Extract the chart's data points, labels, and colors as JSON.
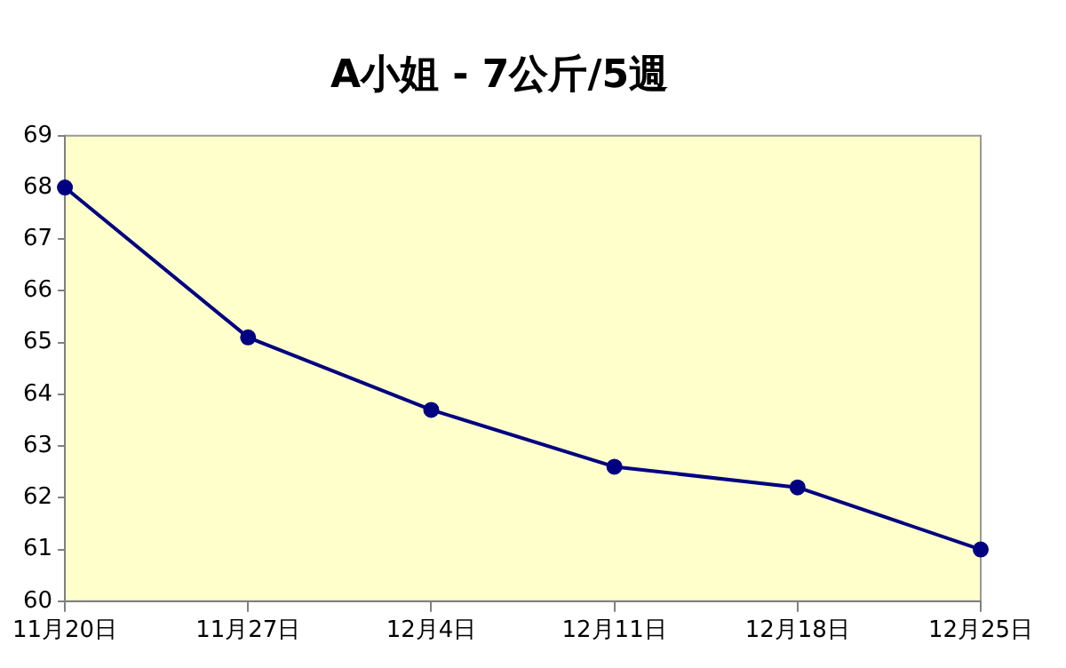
{
  "chart_data": {
    "type": "line",
    "title": "A小姐 - 7公斤/5週",
    "categories": [
      "11月20日",
      "11月27日",
      "12月4日",
      "12月11日",
      "12月18日",
      "12月25日"
    ],
    "series": [
      {
        "color": "#000080",
        "values": [
          68,
          65.1,
          63.7,
          62.6,
          62.2,
          61
        ]
      }
    ],
    "ylim": [
      60,
      69
    ],
    "yticks": [
      60,
      61,
      62,
      63,
      64,
      65,
      66,
      67,
      68,
      69
    ],
    "grid": false,
    "legend": false,
    "marker": "circle",
    "line_style": "solid"
  }
}
